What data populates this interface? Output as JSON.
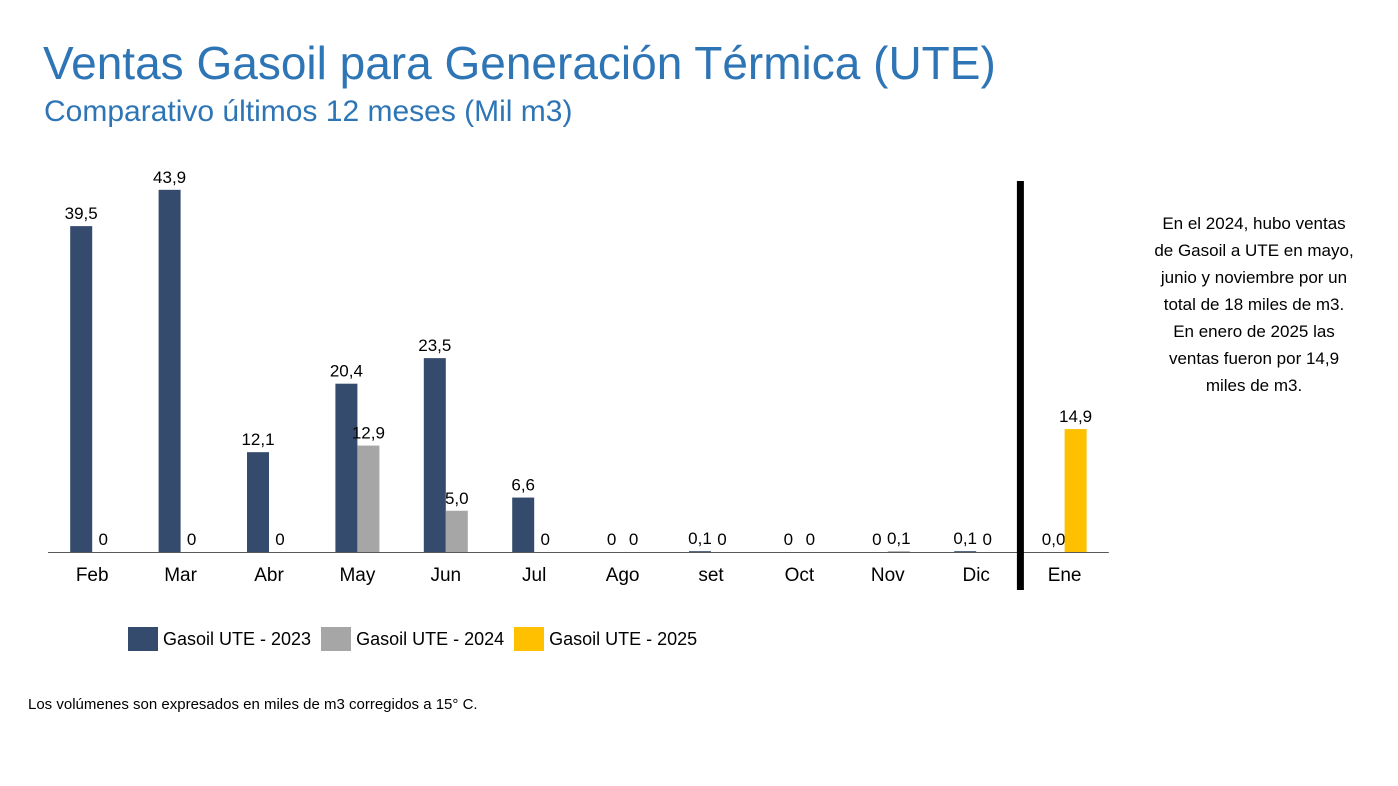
{
  "header": {
    "title": "Ventas Gasoil para Generación Térmica (UTE)",
    "subtitle": "Comparativo últimos 12 meses (Mil m3)"
  },
  "side_note": [
    "En el 2024, hubo ventas",
    "de Gasoil a UTE en mayo,",
    "junio y noviembre por un",
    "total de 18 miles de m3.",
    "En enero de 2025 las",
    "ventas fueron por 14,9",
    "miles de m3."
  ],
  "footnote": "Los volúmenes son expresados en miles de m3 corregidos a 15° C.",
  "colors": {
    "title": "#2E75B6",
    "series_2023": "#354B6E",
    "series_2024": "#A6A6A6",
    "series_2025": "#FFC000",
    "divider": "#000000",
    "axis": "#595959"
  },
  "chart_data": {
    "type": "bar",
    "title": "Ventas Gasoil para Generación Térmica (UTE)",
    "subtitle": "Comparativo últimos 12 meses (Mil m3)",
    "categories": [
      "Feb",
      "Mar",
      "Abr",
      "May",
      "Jun",
      "Jul",
      "Ago",
      "set",
      "Oct",
      "Nov",
      "Dic",
      "Ene"
    ],
    "series": [
      {
        "name": "Gasoil UTE - 2023",
        "color": "#354B6E",
        "values": [
          39.5,
          43.9,
          12.1,
          20.4,
          23.5,
          6.6,
          0,
          0.1,
          0,
          0,
          0.1,
          0.0
        ],
        "labels": [
          "39,5",
          "43,9",
          "12,1",
          "20,4",
          "23,5",
          "6,6",
          "0",
          "0,1",
          "0",
          "0",
          "0,1",
          "0,0"
        ]
      },
      {
        "name": "Gasoil UTE - 2024",
        "color": "#A6A6A6",
        "values": [
          0,
          0,
          0,
          12.9,
          5.0,
          0,
          0,
          0,
          0,
          0.1,
          0,
          null
        ],
        "labels": [
          "0",
          "0",
          "0",
          "12,9",
          "5,0",
          "0",
          "0",
          "0",
          "0",
          "0,1",
          "0",
          ""
        ]
      },
      {
        "name": "Gasoil UTE - 2025",
        "color": "#FFC000",
        "values": [
          null,
          null,
          null,
          null,
          null,
          null,
          null,
          null,
          null,
          null,
          null,
          14.9
        ],
        "labels": [
          "",
          "",
          "",
          "",
          "",
          "",
          "",
          "",
          "",
          "",
          "",
          "14,9"
        ]
      }
    ],
    "ylim": [
      0,
      44
    ],
    "xlabel": "",
    "ylabel": "",
    "grid": false,
    "legend_position": "bottom-left",
    "divider_before_category": "Ene"
  }
}
